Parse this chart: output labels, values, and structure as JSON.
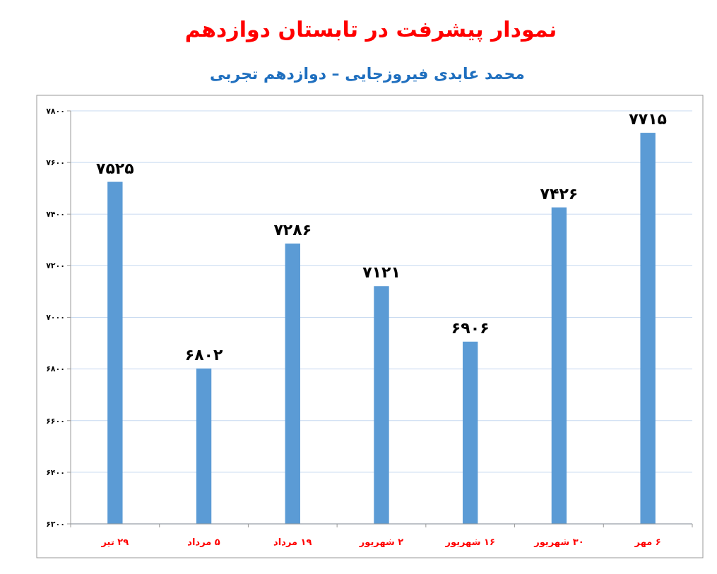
{
  "chart_data": {
    "type": "bar",
    "title": "نمودار پیشرفت در تابستان دوازدهم",
    "subtitle": "محمد عابدی فیروزجایی – دوازدهم تجربی",
    "categories": [
      "۲۹ تیر",
      "۵ مرداد",
      "۱۹ مرداد",
      "۲ شهریور",
      "۱۶ شهریور",
      "۳۰ شهریور",
      "۶ مهر"
    ],
    "values": [
      7525,
      6802,
      7286,
      7121,
      6906,
      7426,
      7715
    ],
    "value_labels": [
      "۷۵۲۵",
      "۶۸۰۲",
      "۷۲۸۶",
      "۷۱۲۱",
      "۶۹۰۶",
      "۷۴۲۶",
      "۷۷۱۵"
    ],
    "color": "#5b9bd5",
    "ylim": [
      6200,
      7800
    ],
    "yticks": [
      {
        "value": 6200,
        "label": "۶۲۰۰"
      },
      {
        "value": 6400,
        "label": "۶۴۰۰"
      },
      {
        "value": 6600,
        "label": "۶۶۰۰"
      },
      {
        "value": 6800,
        "label": "۶۸۰۰"
      },
      {
        "value": 7000,
        "label": "۷۰۰۰"
      },
      {
        "value": 7200,
        "label": "۷۲۰۰"
      },
      {
        "value": 7400,
        "label": "۷۴۰۰"
      },
      {
        "value": 7600,
        "label": "۷۶۰۰"
      },
      {
        "value": 7800,
        "label": "۷۸۰۰"
      }
    ],
    "grid": "y"
  }
}
